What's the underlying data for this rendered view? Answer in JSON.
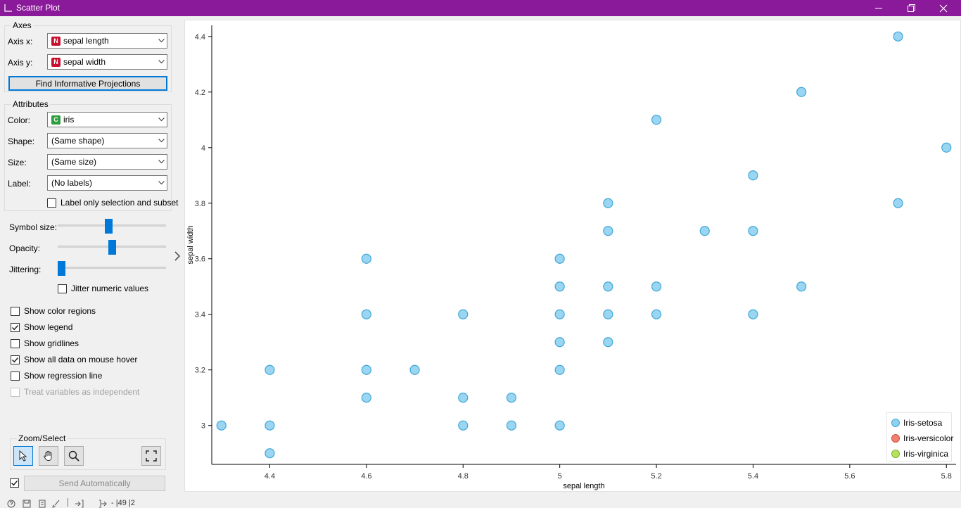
{
  "window": {
    "title": "Scatter Plot"
  },
  "axes_group": {
    "title": "Axes",
    "axis_x_label": "Axis x:",
    "axis_x_badge": "N",
    "axis_x_value": "sepal length",
    "axis_y_label": "Axis y:",
    "axis_y_badge": "N",
    "axis_y_value": "sepal width",
    "find_button": "Find Informative Projections"
  },
  "attributes_group": {
    "title": "Attributes",
    "color_label": "Color:",
    "color_badge": "C",
    "color_value": "iris",
    "shape_label": "Shape:",
    "shape_value": "(Same shape)",
    "size_label": "Size:",
    "size_value": "(Same size)",
    "label_label": "Label:",
    "label_value": "(No labels)",
    "label_only_selection": "Label only selection and subset"
  },
  "sliders": {
    "symbol_size_label": "Symbol size:",
    "symbol_size_level": 0.47,
    "opacity_label": "Opacity:",
    "opacity_level": 0.5,
    "jittering_label": "Jittering:",
    "jittering_level": 0.0,
    "jitter_numeric": "Jitter numeric values"
  },
  "options": [
    {
      "label": "Show color regions",
      "checked": false,
      "disabled": false
    },
    {
      "label": "Show legend",
      "checked": true,
      "disabled": false
    },
    {
      "label": "Show gridlines",
      "checked": false,
      "disabled": false
    },
    {
      "label": "Show all data on mouse hover",
      "checked": true,
      "disabled": false
    },
    {
      "label": "Show regression line",
      "checked": false,
      "disabled": false
    },
    {
      "label": "Treat variables as independent",
      "checked": false,
      "disabled": true
    }
  ],
  "zoom_select": {
    "title": "Zoom/Select"
  },
  "send": {
    "label": "Send Automatically",
    "auto_checked": true
  },
  "status": {
    "text": "- |49 |2"
  },
  "colors": {
    "titlebar": "#8b1a9a",
    "accent": "#0078d7",
    "setosa_fill": "#8fd0ef",
    "setosa_stroke": "#3fa7d8"
  },
  "icons": [
    "chart-icon",
    "minimize-icon",
    "maximize-icon",
    "close-icon",
    "dropdown-arrow-icon",
    "select-arrow-icon",
    "pan-hand-icon",
    "zoom-icon",
    "fit-to-view-icon",
    "collapse-chevron-icon"
  ],
  "legend": {
    "items": [
      {
        "name": "Iris-setosa",
        "color": "#8fd0ef",
        "stroke": "#3fa7d8"
      },
      {
        "name": "Iris-versicolor",
        "color": "#f08070",
        "stroke": "#d04a3a"
      },
      {
        "name": "Iris-virginica",
        "color": "#b6e060",
        "stroke": "#80b030"
      }
    ]
  },
  "chart_data": {
    "type": "scatter",
    "xlabel": "sepal length",
    "ylabel": "sepal width",
    "xlim": [
      4.28,
      5.82
    ],
    "ylim": [
      2.86,
      4.44
    ],
    "xticks": [
      "4.4",
      "4.6",
      "4.8",
      "5",
      "5.2",
      "5.4",
      "5.6",
      "5.8"
    ],
    "yticks": [
      "3",
      "3.2",
      "3.4",
      "3.6",
      "3.8",
      "4",
      "4.2",
      "4.4"
    ],
    "series": [
      {
        "name": "Iris-setosa",
        "points": [
          [
            4.3,
            3.0
          ],
          [
            4.4,
            2.9
          ],
          [
            4.4,
            3.0
          ],
          [
            4.4,
            3.2
          ],
          [
            4.6,
            3.1
          ],
          [
            4.6,
            3.2
          ],
          [
            4.6,
            3.4
          ],
          [
            4.6,
            3.6
          ],
          [
            4.7,
            3.2
          ],
          [
            4.8,
            3.0
          ],
          [
            4.8,
            3.1
          ],
          [
            4.8,
            3.4
          ],
          [
            4.9,
            3.0
          ],
          [
            4.9,
            3.1
          ],
          [
            5.0,
            3.0
          ],
          [
            5.0,
            3.2
          ],
          [
            5.0,
            3.3
          ],
          [
            5.0,
            3.4
          ],
          [
            5.0,
            3.5
          ],
          [
            5.0,
            3.6
          ],
          [
            5.1,
            3.3
          ],
          [
            5.1,
            3.4
          ],
          [
            5.1,
            3.5
          ],
          [
            5.1,
            3.7
          ],
          [
            5.1,
            3.8
          ],
          [
            5.2,
            3.4
          ],
          [
            5.2,
            3.5
          ],
          [
            5.2,
            4.1
          ],
          [
            5.3,
            3.7
          ],
          [
            5.4,
            3.4
          ],
          [
            5.4,
            3.7
          ],
          [
            5.4,
            3.9
          ],
          [
            5.5,
            3.5
          ],
          [
            5.5,
            4.2
          ],
          [
            5.7,
            3.8
          ],
          [
            5.7,
            4.4
          ],
          [
            5.8,
            4.0
          ]
        ]
      }
    ]
  }
}
